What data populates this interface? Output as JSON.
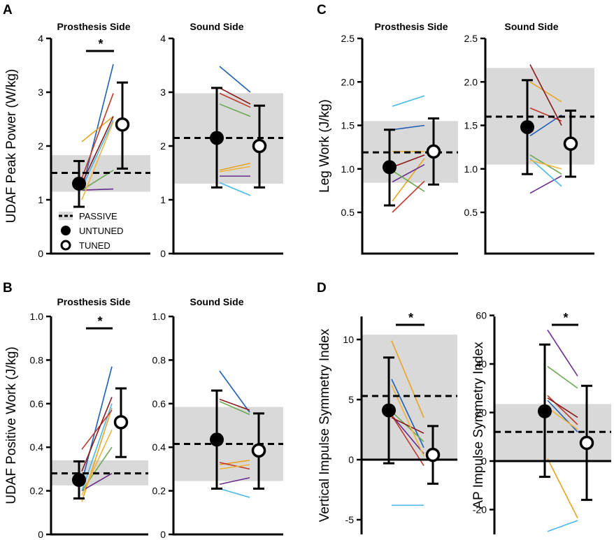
{
  "panel_letters": [
    "A",
    "B",
    "C",
    "D"
  ],
  "legend": {
    "passive": "PASSIVE",
    "untuned": "UNTUNED",
    "tuned": "TUNED"
  },
  "colors": {
    "band": "#d9d9d9",
    "axis": "#000000",
    "lines": [
      "#1f5fb4",
      "#e8a420",
      "#6a2b8e",
      "#6aa84f",
      "#48b8e8",
      "#c0392b",
      "#8b1a1a",
      "#f0b43c"
    ]
  },
  "chart_data": [
    {
      "id": "A-prosthesis",
      "type": "paired-scatter",
      "title": "Prosthesis Side",
      "ylabel": "UDAF Peak Power (W/kg)",
      "ylim": [
        0,
        4
      ],
      "ticks": [
        0,
        1,
        2,
        3,
        4
      ],
      "tick_labels": [
        "0",
        "1",
        "2",
        "3",
        "4"
      ],
      "band": [
        1.15,
        1.83
      ],
      "passive_mean": 1.5,
      "untuned": {
        "mean": 1.3,
        "low": 0.87,
        "high": 1.72
      },
      "tuned": {
        "mean": 2.4,
        "low": 1.58,
        "high": 3.18
      },
      "subjects": [
        [
          1.18,
          3.52
        ],
        [
          2.08,
          2.55
        ],
        [
          1.18,
          1.2
        ],
        [
          1.18,
          1.55
        ],
        [
          1.22,
          2.48
        ],
        [
          1.4,
          2.98
        ],
        [
          1.3,
          2.55
        ],
        [
          1.0,
          2.45
        ]
      ],
      "sig": "*"
    },
    {
      "id": "A-sound",
      "type": "paired-scatter",
      "title": "Sound Side",
      "ylabel": "",
      "ylim": [
        0,
        4
      ],
      "ticks": [
        0,
        1,
        2,
        3,
        4
      ],
      "tick_labels": [
        "0",
        "1",
        "2",
        "3",
        "4"
      ],
      "band": [
        1.3,
        2.98
      ],
      "passive_mean": 2.15,
      "untuned": {
        "mean": 2.15,
        "low": 1.23,
        "high": 3.08
      },
      "tuned": {
        "mean": 2.0,
        "low": 1.23,
        "high": 2.75
      },
      "subjects": [
        [
          3.48,
          3.0
        ],
        [
          1.55,
          1.68
        ],
        [
          1.44,
          1.44
        ],
        [
          2.78,
          2.55
        ],
        [
          1.32,
          1.08
        ],
        [
          2.98,
          2.72
        ],
        [
          3.08,
          2.78
        ],
        [
          1.52,
          1.62
        ]
      ]
    },
    {
      "id": "B-prosthesis",
      "type": "paired-scatter",
      "title": "Prosthesis Side",
      "ylabel": "UDAF Positive Work (J/kg)",
      "ylim": [
        0,
        1
      ],
      "ticks": [
        0,
        0.2,
        0.4,
        0.6,
        0.8,
        1.0
      ],
      "tick_labels": [
        "0",
        "0.2",
        "0.4",
        "0.6",
        "0.8",
        "1.0"
      ],
      "band": [
        0.225,
        0.34
      ],
      "passive_mean": 0.28,
      "untuned": {
        "mean": 0.25,
        "low": 0.165,
        "high": 0.335
      },
      "tuned": {
        "mean": 0.515,
        "low": 0.355,
        "high": 0.67
      },
      "subjects": [
        [
          0.24,
          0.77
        ],
        [
          0.15,
          0.58
        ],
        [
          0.2,
          0.28
        ],
        [
          0.2,
          0.4
        ],
        [
          0.2,
          0.6
        ],
        [
          0.39,
          0.57
        ],
        [
          0.29,
          0.63
        ],
        [
          0.18,
          0.48
        ]
      ],
      "sig": "*"
    },
    {
      "id": "B-sound",
      "type": "paired-scatter",
      "title": "Sound Side",
      "ylabel": "",
      "ylim": [
        0,
        1
      ],
      "ticks": [
        0,
        0.2,
        0.4,
        0.6,
        0.8,
        1.0
      ],
      "tick_labels": [
        "0",
        "0.2",
        "0.4",
        "0.6",
        "0.8",
        "1.0"
      ],
      "band": [
        0.245,
        0.585
      ],
      "passive_mean": 0.415,
      "untuned": {
        "mean": 0.435,
        "low": 0.21,
        "high": 0.66
      },
      "tuned": {
        "mean": 0.385,
        "low": 0.21,
        "high": 0.555
      },
      "subjects": [
        [
          0.75,
          0.56
        ],
        [
          0.32,
          0.34
        ],
        [
          0.23,
          0.26
        ],
        [
          0.61,
          0.55
        ],
        [
          0.21,
          0.17
        ],
        [
          0.33,
          0.3
        ],
        [
          0.62,
          0.57
        ],
        [
          0.3,
          0.32
        ]
      ]
    },
    {
      "id": "C-prosthesis",
      "type": "paired-scatter",
      "title": "Prosthesis Side",
      "ylabel": "Leg Work (J/kg)",
      "ylim": [
        0,
        2.5
      ],
      "ticks": [
        0.5,
        1.0,
        1.5,
        2.0,
        2.5
      ],
      "tick_labels": [
        "0.5",
        "1.0",
        "1.5",
        "2.0",
        "2.5"
      ],
      "band": [
        0.84,
        1.55
      ],
      "passive_mean": 1.19,
      "untuned": {
        "mean": 1.02,
        "low": 0.58,
        "high": 1.45
      },
      "tuned": {
        "mean": 1.2,
        "low": 0.82,
        "high": 1.58
      },
      "subjects": [
        [
          1.45,
          1.5
        ],
        [
          0.63,
          1.12
        ],
        [
          0.85,
          1.05
        ],
        [
          0.98,
          0.74
        ],
        [
          1.72,
          1.84
        ],
        [
          0.5,
          0.86
        ],
        [
          1.02,
          1.16
        ],
        [
          1.2,
          1.2
        ]
      ]
    },
    {
      "id": "C-sound",
      "type": "paired-scatter",
      "title": "Sound Side",
      "ylabel": "",
      "ylim": [
        0,
        2.5
      ],
      "ticks": [
        0.5,
        1.0,
        1.5,
        2.0,
        2.5
      ],
      "tick_labels": [
        "0.5",
        "1.0",
        "1.5",
        "2.0",
        "2.5"
      ],
      "band": [
        1.05,
        2.16
      ],
      "passive_mean": 1.6,
      "untuned": {
        "mean": 1.48,
        "low": 0.94,
        "high": 2.02
      },
      "tuned": {
        "mean": 1.29,
        "low": 0.91,
        "high": 1.67
      },
      "subjects": [
        [
          1.38,
          1.62
        ],
        [
          2.0,
          1.77
        ],
        [
          0.72,
          0.92
        ],
        [
          1.16,
          0.94
        ],
        [
          1.12,
          0.8
        ],
        [
          1.7,
          1.55
        ],
        [
          2.2,
          1.5
        ],
        [
          1.1,
          1.0
        ]
      ]
    },
    {
      "id": "D-vertical",
      "type": "paired-scatter",
      "title": "",
      "ylabel": "Vertical Impulse Symmetry Index",
      "ylim": [
        -6,
        12
      ],
      "ticks": [
        -5,
        0,
        5,
        10
      ],
      "tick_labels": [
        "-5",
        "0",
        "5",
        "10"
      ],
      "band": [
        0,
        10.4
      ],
      "passive_mean": 5.3,
      "untuned": {
        "mean": 4.1,
        "low": -0.3,
        "high": 8.5
      },
      "tuned": {
        "mean": 0.4,
        "low": -2.0,
        "high": 2.8
      },
      "subjects": [
        [
          6.7,
          1.0
        ],
        [
          9.9,
          3.5
        ],
        [
          3.7,
          0.5
        ],
        [
          4.0,
          1.5
        ],
        [
          -3.8,
          -3.8
        ],
        [
          3.7,
          -0.5
        ],
        [
          3.5,
          2.2
        ],
        [
          6.2,
          0.3
        ]
      ],
      "sig": "*"
    },
    {
      "id": "D-ap",
      "type": "paired-scatter",
      "title": "",
      "ylabel": "AP Impulse Symmetry Index",
      "ylim": [
        -30,
        60
      ],
      "ticks": [
        -20,
        0,
        20,
        40,
        60
      ],
      "tick_labels": [
        "-20",
        "0",
        "20",
        "40",
        "60"
      ],
      "band": [
        0,
        23.5
      ],
      "passive_mean": 12,
      "untuned": {
        "mean": 20.5,
        "low": -6.5,
        "high": 48
      },
      "tuned": {
        "mean": 7.5,
        "low": -16,
        "high": 31
      },
      "subjects": [
        [
          25,
          12
        ],
        [
          1.0,
          -23.5
        ],
        [
          54,
          35
        ],
        [
          39,
          30
        ],
        [
          -29,
          -24.5
        ],
        [
          27,
          15
        ],
        [
          26,
          18
        ],
        [
          22,
          13
        ]
      ],
      "sig": "*"
    }
  ]
}
